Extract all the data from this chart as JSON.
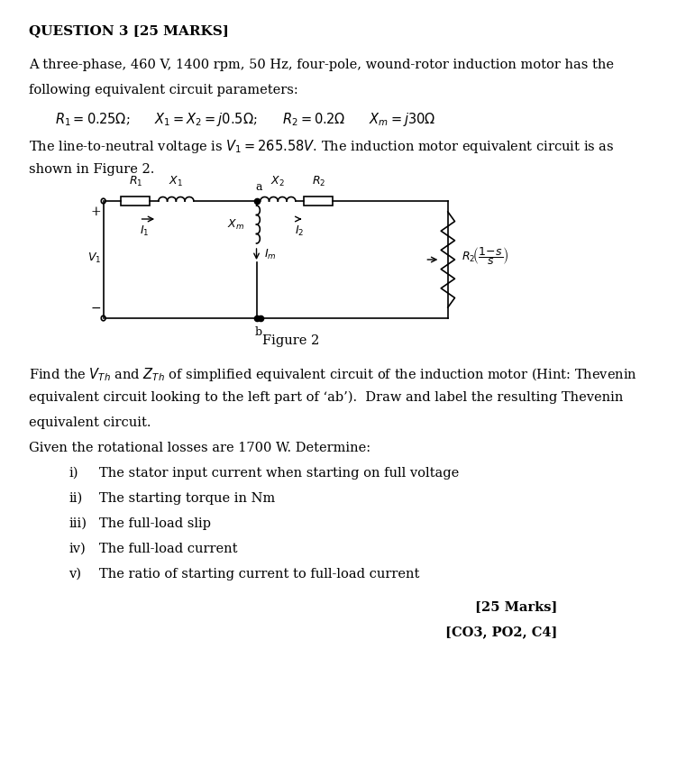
{
  "title": "QUESTION 3 [25 MARKS]",
  "bg_color": "#ffffff",
  "text_color": "#000000",
  "line1": "A three-phase, 460 V, 1400 rpm, 50 Hz, four-pole, wound-rotor induction motor has the",
  "line2": "following equivalent circuit parameters:",
  "params_line": "$R_1 = 0.25\\Omega$;      $X_1 = X_2 = j0.5\\Omega$;      $R_2 = 0.2\\Omega$      $X_m = j30\\Omega$",
  "line_v1": "The line-to-neutral voltage is $V_1 = 265.58V$. The induction motor equivalent circuit is as",
  "line_shown": "shown in Figure 2.",
  "figure_caption": "Figure 2",
  "find_text_line1": "Find the $V_{Th}$ and $Z_{Th}$ of simplified equivalent circuit of the induction motor (Hint: Thevenin",
  "find_text_line2": "equivalent circuit looking to the left part of ‘ab’).  Draw and label the resulting Thevenin",
  "find_text_line3": "equivalent circuit.",
  "given_text": "Given the rotational losses are 1700 W. Determine:",
  "items": [
    [
      "i)",
      "The stator input current when starting on full voltage"
    ],
    [
      "ii)",
      "The starting torque in Nm"
    ],
    [
      "iii)",
      "The full-load slip"
    ],
    [
      "iv)",
      "The full-load current"
    ],
    [
      "v)",
      "The ratio of starting current to full-load current"
    ]
  ],
  "marks_line1": "[25 Marks]",
  "marks_line2": "[CO3, PO2, C4]",
  "font_size_title": 11,
  "font_size_body": 10.5
}
